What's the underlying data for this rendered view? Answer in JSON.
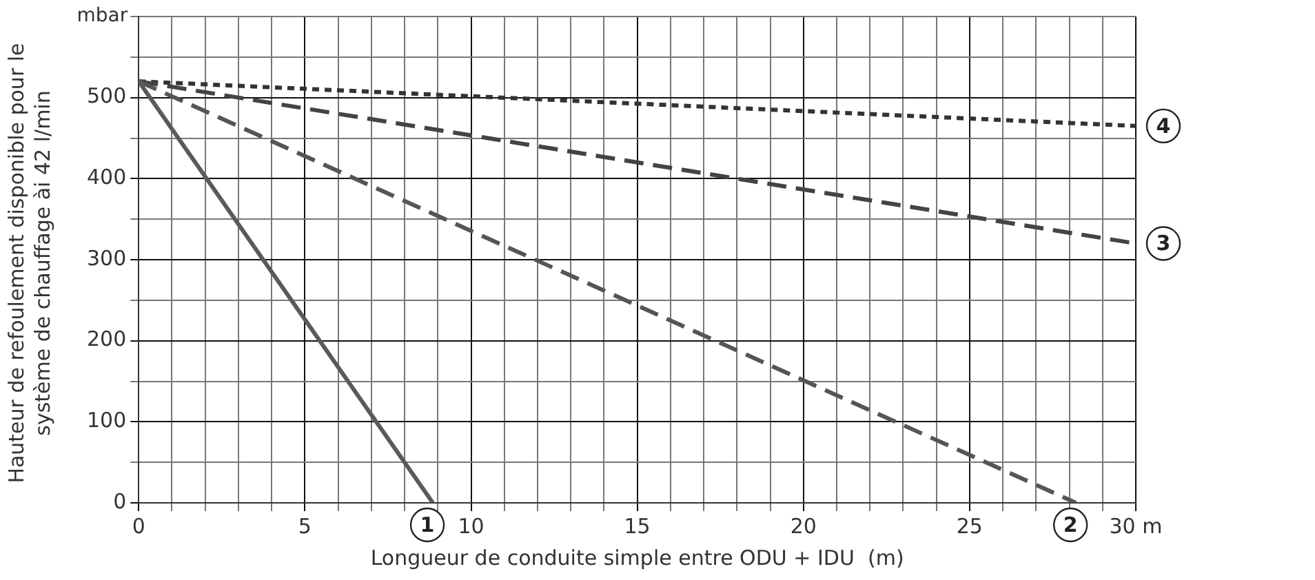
{
  "chart_data": {
    "type": "line",
    "xlabel": "Longueur de conduite simple entre ODU + IDU  (m)",
    "ylabel": "Hauteur de refoulement disponible pour le système de chauffage ài 42 l/min",
    "annotations": [
      "mbar"
    ],
    "xlim": [
      0,
      30
    ],
    "xticks": [
      0,
      {
        "value": 1,
        "label": null
      },
      {
        "value": 2,
        "label": null
      },
      {
        "value": 3,
        "label": null
      },
      {
        "value": 4,
        "label": null
      },
      5,
      {
        "value": 6,
        "label": null
      },
      {
        "value": 7,
        "label": null
      },
      {
        "value": 8,
        "label": null
      },
      {
        "value": 9,
        "label": null
      },
      10,
      {
        "value": 11,
        "label": null
      },
      {
        "value": 12,
        "label": null
      },
      {
        "value": 13,
        "label": null
      },
      {
        "value": 14,
        "label": null
      },
      15,
      {
        "value": 16,
        "label": null
      },
      {
        "value": 17,
        "label": null
      },
      {
        "value": 18,
        "label": null
      },
      {
        "value": 19,
        "label": null
      },
      20,
      {
        "value": 21,
        "label": null
      },
      {
        "value": 22,
        "label": null
      },
      {
        "value": 23,
        "label": null
      },
      {
        "value": 24,
        "label": null
      },
      25,
      {
        "value": 26,
        "label": null
      },
      {
        "value": 27,
        "label": null
      },
      {
        "value": 28,
        "label": null
      },
      {
        "value": 29,
        "label": null
      },
      {
        "value": 30,
        "label": "30 m"
      }
    ],
    "ylim": [
      0,
      600
    ],
    "yticks": [
      0,
      {
        "value": 50,
        "label": null
      },
      100,
      {
        "value": 150,
        "label": null
      },
      200,
      {
        "value": 250,
        "label": null
      },
      300,
      {
        "value": 350,
        "label": null
      },
      400,
      {
        "value": 450,
        "label": null
      },
      500,
      {
        "value": 550,
        "label": null
      },
      {
        "value": 600,
        "label": null
      }
    ],
    "grid": true,
    "legend": false,
    "marker": "none",
    "series": [
      {
        "name": "1",
        "color": "#5a5a5a",
        "line_style": "solid",
        "x": [
          0,
          8.85
        ],
        "values": [
          520,
          0
        ]
      },
      {
        "name": "2",
        "color": "#555555",
        "line_style": "dashed",
        "x": [
          0,
          28.2
        ],
        "values": [
          520,
          0
        ]
      },
      {
        "name": "3",
        "color": "#444444",
        "line_style": "dashed",
        "x": [
          0,
          30
        ],
        "values": [
          520,
          320
        ]
      },
      {
        "name": "4",
        "color": "#333333",
        "line_style": "dotted",
        "x": [
          0,
          30
        ],
        "values": [
          520,
          465
        ]
      }
    ]
  }
}
